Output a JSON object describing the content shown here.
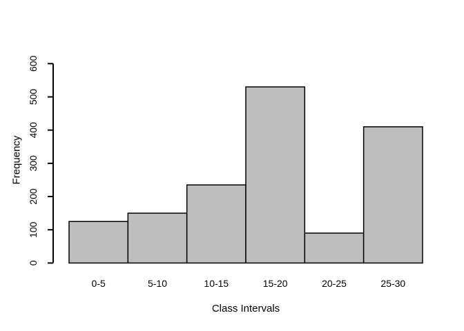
{
  "chart_data": {
    "type": "bar",
    "style": "histogram",
    "title": "",
    "xlabel": "Class Intervals",
    "ylabel": "Frequency",
    "categories": [
      "0-5",
      "5-10",
      "10-15",
      "15-20",
      "20-25",
      "25-30"
    ],
    "values": [
      125,
      150,
      235,
      530,
      90,
      410
    ],
    "yticks": [
      0,
      100,
      200,
      300,
      400,
      500,
      600
    ],
    "ylim": [
      0,
      600
    ],
    "grid": false,
    "legend": false,
    "bar_fill": "#bebebe",
    "bar_stroke": "#000000",
    "axis_color": "#000000",
    "background": "#ffffff"
  }
}
